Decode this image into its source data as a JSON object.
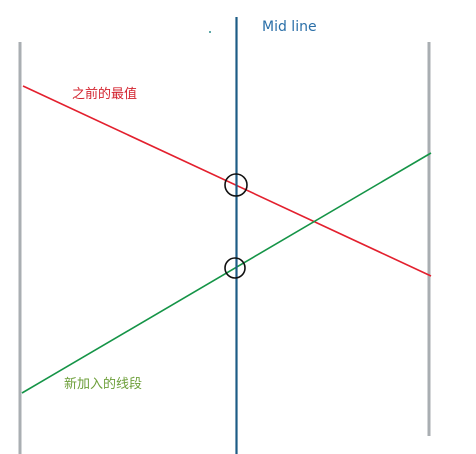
{
  "labels": {
    "mid_line": "Mid line",
    "previous_best": "之前的最值",
    "new_segment": "新加入的线段"
  },
  "colors": {
    "boundary": "#a9aeb2",
    "mid_line": "#1d5c86",
    "mid_label": "#2a6fa8",
    "previous_best": "#e3202e",
    "previous_best_label": "#d3232e",
    "new_segment": "#159447",
    "new_segment_label": "#6d9f3a",
    "marker": "#111111",
    "dot": "#2e8c8c"
  }
}
